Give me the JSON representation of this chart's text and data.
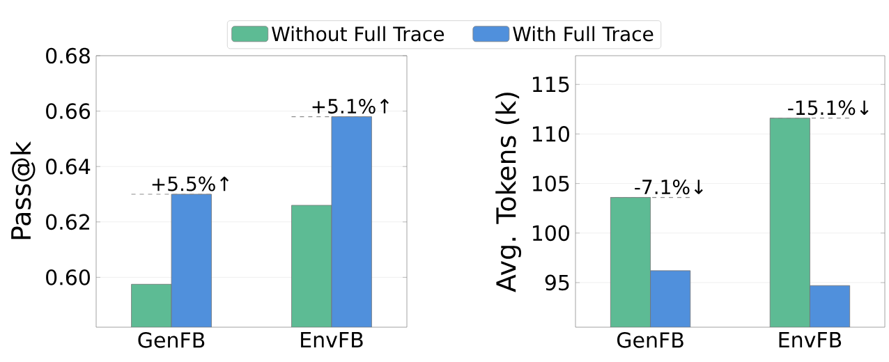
{
  "chart_data": [
    {
      "type": "bar",
      "ylabel": "Pass@k",
      "categories": [
        "GenFB",
        "EnvFB"
      ],
      "series": [
        {
          "name": "Without Full Trace",
          "color": "#5dbb94",
          "values": [
            0.5975,
            0.626
          ]
        },
        {
          "name": "With Full Trace",
          "color": "#5090dc",
          "values": [
            0.63,
            0.658
          ]
        }
      ],
      "ylim": [
        0.582,
        0.68
      ],
      "yticks": [
        {
          "value": 0.6,
          "label": "0.60"
        },
        0.62,
        0.64,
        0.66,
        0.68
      ],
      "grid": "y",
      "legend": "top",
      "annotations": [
        {
          "text": "+5.5%↑",
          "x": "GenFB",
          "y": 0.63
        },
        {
          "text": "+5.1%↑",
          "x": "EnvFB",
          "y": 0.658
        }
      ]
    },
    {
      "type": "bar",
      "ylabel": "Avg. Tokens (k)",
      "categories": [
        "GenFB",
        "EnvFB"
      ],
      "series": [
        {
          "color": "#5dbb94",
          "values": [
            103.6,
            111.6
          ]
        },
        {
          "color": "#5090dc",
          "values": [
            96.2,
            94.7
          ]
        }
      ],
      "ylim": [
        90.5,
        117.9
      ],
      "yticks": [
        95,
        100,
        105,
        110,
        115
      ],
      "grid": "y",
      "annotations": [
        {
          "text": "-7.1%↓",
          "x": "GenFB",
          "y": 103.6
        },
        {
          "text": "-15.1%↓",
          "x": "EnvFB",
          "y": 111.6
        }
      ]
    }
  ]
}
